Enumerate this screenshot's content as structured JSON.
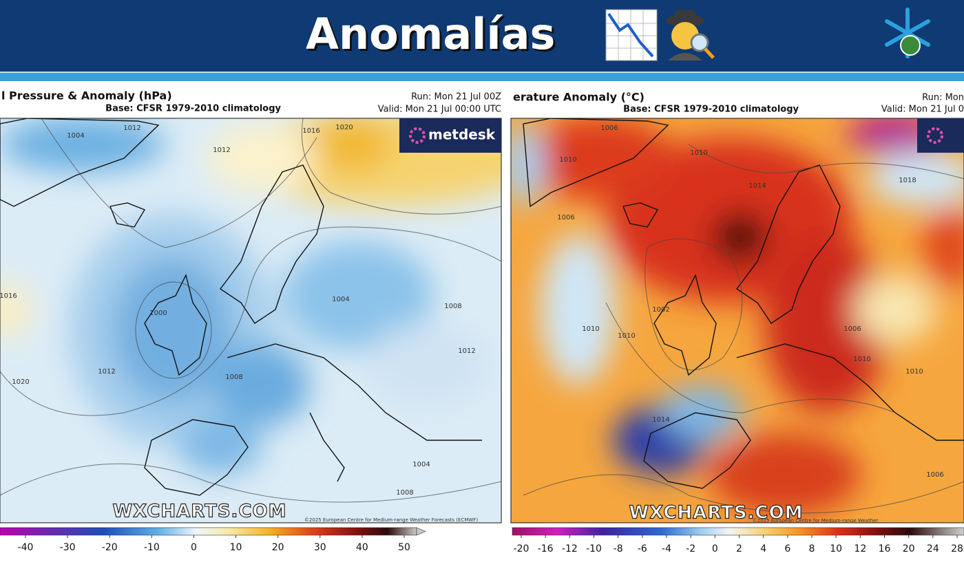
{
  "header": {
    "title": "Anomalías"
  },
  "panels": [
    {
      "title": "l Pressure & Anomaly (hPa)",
      "base": "Base: CFSR 1979-2010 climatology",
      "run": "Run: Mon 21 Jul 00Z",
      "valid": "Valid: Mon 21 Jul 00:00 UTC",
      "logo": "metdesk",
      "watermark": "WXCHARTS.COM",
      "copyright": "©2025 European Centre for Medium-range Weather Forecasts (ECMWF)",
      "contour_labels": [
        "1004",
        "1012",
        "1012",
        "1016",
        "1020",
        "1016",
        "1000",
        "1004",
        "1008",
        "1012",
        "1020",
        "1008",
        "1004",
        "1008",
        "1012"
      ],
      "colorbar_ticks": [
        -40,
        -30,
        -20,
        -10,
        0,
        10,
        20,
        30,
        40,
        50
      ]
    },
    {
      "title": "erature Anomaly (°C)",
      "base": "Base: CFSR 1979-2010 climatology",
      "run": "Run: Mon",
      "valid": "Valid: Mon 21 Jul 0",
      "watermark": "WXCHARTS.COM",
      "copyright": "©2025 European Centre for Medium-range Weather",
      "contour_labels": [
        "1006",
        "1010",
        "1010",
        "1014",
        "1018",
        "1006",
        "1002",
        "1010",
        "1010",
        "1014",
        "1006",
        "1010",
        "1010",
        "1006"
      ],
      "colorbar_ticks": [
        -20,
        -16,
        -12,
        -10,
        -8,
        -6,
        -4,
        -2,
        0,
        2,
        4,
        6,
        8,
        10,
        12,
        16,
        20,
        24,
        28
      ]
    }
  ]
}
